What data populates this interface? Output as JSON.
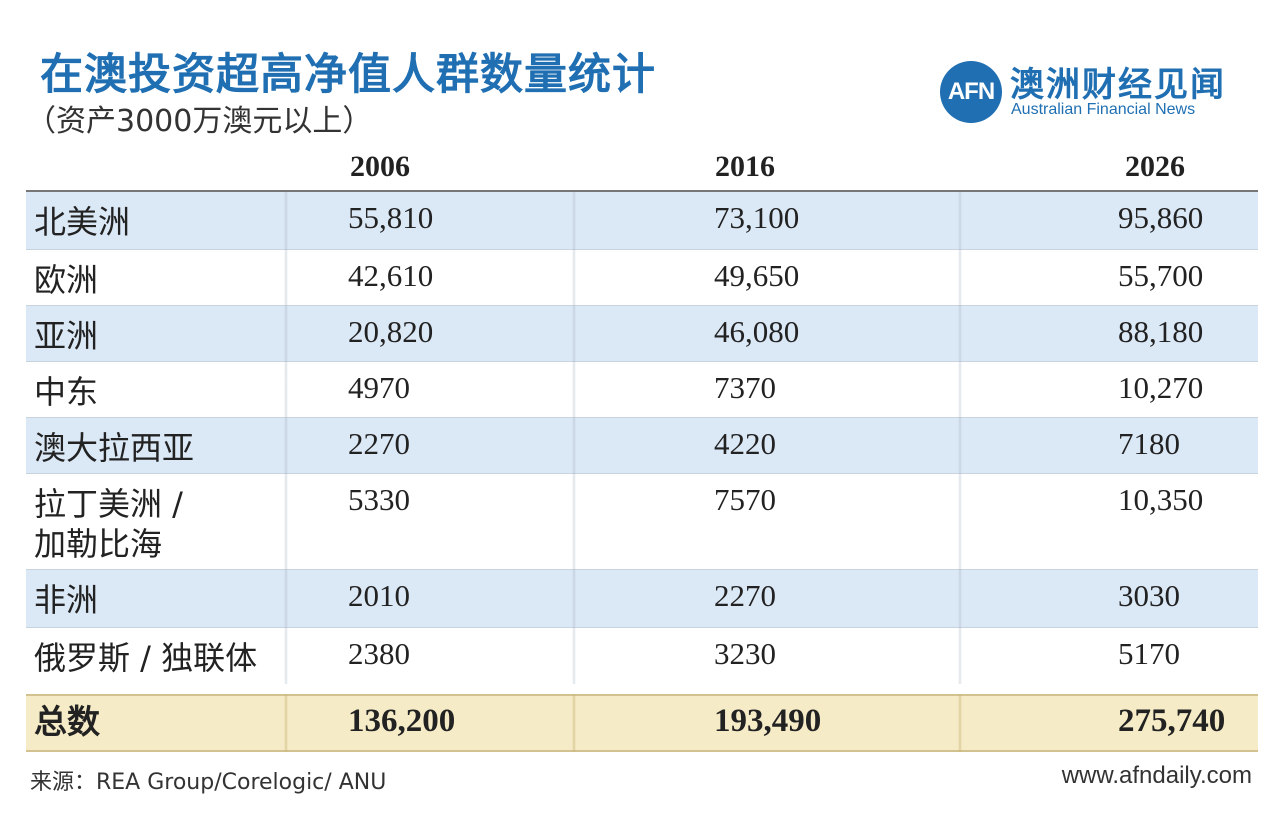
{
  "header": {
    "title": "在澳投资超高净值人群数量统计",
    "subtitle": "（资产3000万澳元以上）"
  },
  "logo": {
    "mark": "AFN",
    "name_cn": "澳洲财经见闻",
    "name_en": "Australian Financial News"
  },
  "chart_data": {
    "type": "table",
    "title": "在澳投资超高净值人群数量统计",
    "subtitle": "（资产3000万澳元以上）",
    "columns": [
      "2006",
      "2016",
      "2026"
    ],
    "rows": [
      {
        "region": "北美洲",
        "values": [
          "55,810",
          "73,100",
          "95,860"
        ]
      },
      {
        "region": "欧洲",
        "values": [
          "42,610",
          "49,650",
          "55,700"
        ]
      },
      {
        "region": "亚洲",
        "values": [
          "20,820",
          "46,080",
          "88,180"
        ]
      },
      {
        "region": "中东",
        "values": [
          "4970",
          "7370",
          "10,270"
        ]
      },
      {
        "region": "澳大拉西亚",
        "values": [
          "2270",
          "4220",
          "7180"
        ]
      },
      {
        "region_lines": [
          "拉丁美洲 /",
          "加勒比海"
        ],
        "values": [
          "5330",
          "7570",
          "10,350"
        ]
      },
      {
        "region": "非洲",
        "values": [
          "2010",
          "2270",
          "3030"
        ]
      },
      {
        "region": "俄罗斯 / 独联体",
        "values": [
          "2380",
          "3230",
          "5170"
        ]
      }
    ],
    "total": {
      "label": "总数",
      "values": [
        "136,200",
        "193,490",
        "275,740"
      ]
    },
    "colors": {
      "row_blue": "#dbe8f6",
      "total_bg": "#f6ebc7",
      "title_blue": "#1f6fb2"
    }
  },
  "footer": {
    "source": "来源：REA Group/Corelogic/ ANU",
    "website": "www.afndaily.com"
  }
}
